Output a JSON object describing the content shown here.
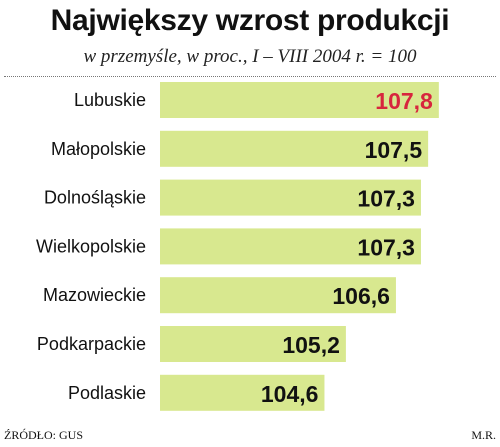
{
  "chart_data": {
    "type": "bar",
    "orientation": "horizontal",
    "title": "Największy wzrost produkcji",
    "subtitle": "w przemyśle, w proc., I – VIII 2004 r. = 100",
    "categories": [
      "Lubuskie",
      "Małopolskie",
      "Dolnośląskie",
      "Wielkopolskie",
      "Mazowieckie",
      "Podkarpackie",
      "Podlaskie"
    ],
    "values": [
      107.8,
      107.5,
      107.3,
      107.3,
      106.6,
      105.2,
      104.6
    ],
    "value_labels": [
      "107,8",
      "107,5",
      "107,3",
      "107,3",
      "106,6",
      "105,2",
      "104,6"
    ],
    "xlim": [
      100,
      108
    ],
    "grid": false,
    "bar_color": "#d8e88f",
    "label_color": "#111111",
    "highlight": {
      "index": 0,
      "color": "#d7263d"
    },
    "bar_edge": "#ffffff"
  },
  "footer": {
    "source": "ŹRÓDŁO: GUS",
    "author": "M.R."
  }
}
